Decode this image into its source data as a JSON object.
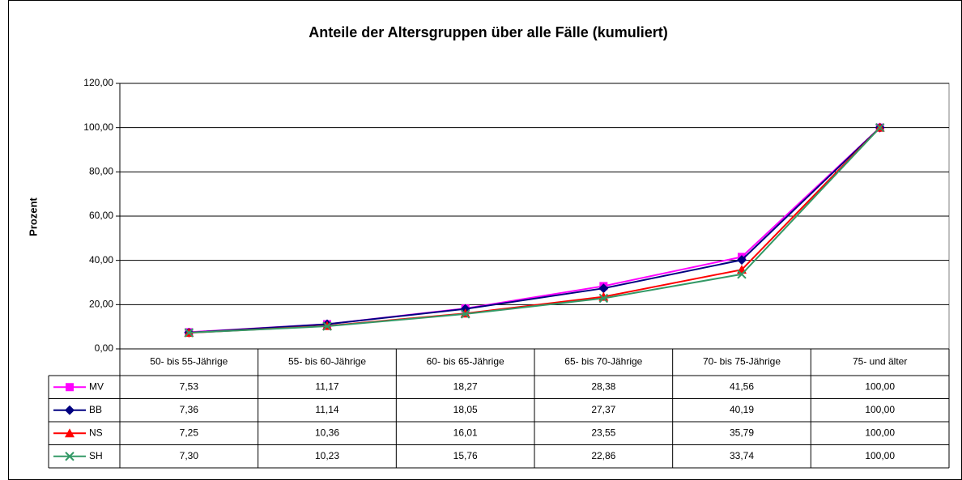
{
  "chart_data": {
    "type": "line",
    "title": "Anteile der Altersgruppen über alle Fälle (kumuliert)",
    "y_label": "Prozent",
    "categories": [
      "50- bis 55-Jährige",
      "55- bis 60-Jährige",
      "60- bis 65-Jährige",
      "65- bis 70-Jährige",
      "70- bis 75-Jährige",
      "75- und älter"
    ],
    "series": [
      {
        "name": "MV",
        "color": "#ff00ff",
        "marker": "square",
        "values": [
          7.53,
          11.17,
          18.27,
          28.38,
          41.56,
          100.0
        ],
        "value_labels": [
          "7,53",
          "11,17",
          "18,27",
          "28,38",
          "41,56",
          "100,00"
        ]
      },
      {
        "name": "BB",
        "color": "#000080",
        "marker": "diamond",
        "values": [
          7.36,
          11.14,
          18.05,
          27.37,
          40.19,
          100.0
        ],
        "value_labels": [
          "7,36",
          "11,14",
          "18,05",
          "27,37",
          "40,19",
          "100,00"
        ]
      },
      {
        "name": "NS",
        "color": "#ff0000",
        "marker": "triangle",
        "values": [
          7.25,
          10.36,
          16.01,
          23.55,
          35.79,
          100.0
        ],
        "value_labels": [
          "7,25",
          "10,36",
          "16,01",
          "23,55",
          "35,79",
          "100,00"
        ]
      },
      {
        "name": "SH",
        "color": "#339966",
        "marker": "x",
        "values": [
          7.3,
          10.23,
          15.76,
          22.86,
          33.74,
          100.0
        ],
        "value_labels": [
          "7,30",
          "10,23",
          "15,76",
          "22,86",
          "33,74",
          "100,00"
        ]
      }
    ],
    "ylim": [
      0,
      120
    ],
    "yticks": [
      {
        "value": 0,
        "label": "0,00"
      },
      {
        "value": 20,
        "label": "20,00"
      },
      {
        "value": 40,
        "label": "40,00"
      },
      {
        "value": 60,
        "label": "60,00"
      },
      {
        "value": 80,
        "label": "80,00"
      },
      {
        "value": 100,
        "label": "100,00"
      },
      {
        "value": 120,
        "label": "120,00"
      }
    ],
    "grid": true
  }
}
